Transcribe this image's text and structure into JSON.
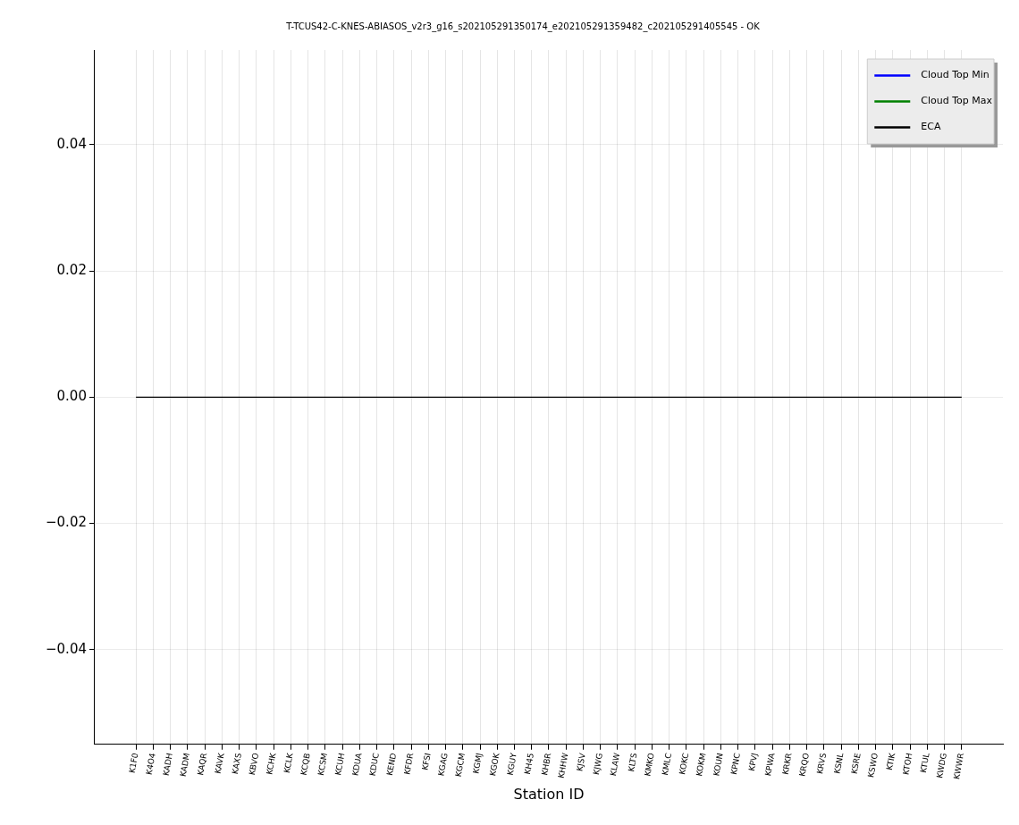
{
  "chart_data": {
    "type": "line",
    "title": "T-TCUS42-C-KNES-ABIASOS_v2r3_g16_s202105291350174_e202105291359482_c202105291405545 - OK",
    "xlabel": "Station ID",
    "categories": [
      "K1F0",
      "K4O4",
      "KADH",
      "KADM",
      "KAQR",
      "KAVK",
      "KAXS",
      "KBVO",
      "KCHK",
      "KCLK",
      "KCQB",
      "KCSM",
      "KCUH",
      "KDUA",
      "KDUC",
      "KEND",
      "KFDR",
      "KFSI",
      "KGAG",
      "KGCM",
      "KGMJ",
      "KGOK",
      "KGUY",
      "KH45",
      "KHBR",
      "KHHW",
      "KJSV",
      "KJWG",
      "KLAW",
      "KLTS",
      "KMKO",
      "KMLC",
      "KOKC",
      "KOKM",
      "KOUN",
      "KPNC",
      "KPVJ",
      "KPWA",
      "KRKR",
      "KRQO",
      "KRVS",
      "KSNL",
      "KSRE",
      "KSWO",
      "KTIK",
      "KTOH",
      "KTUL",
      "KWDG",
      "KWWR"
    ],
    "series": [
      {
        "name": "Cloud Top Min",
        "color": "#0000ff",
        "values": [
          null,
          null,
          null,
          null,
          null,
          null,
          null,
          null,
          null,
          null,
          null,
          null,
          null,
          null,
          null,
          null,
          null,
          null,
          null,
          null,
          null,
          null,
          null,
          null,
          null,
          null,
          null,
          null,
          null,
          null,
          null,
          null,
          null,
          null,
          null,
          null,
          null,
          null,
          null,
          null,
          null,
          null,
          null,
          null,
          null,
          null,
          null,
          null,
          null
        ]
      },
      {
        "name": "Cloud Top Max",
        "color": "#008000",
        "values": [
          null,
          null,
          null,
          null,
          null,
          null,
          null,
          null,
          null,
          null,
          null,
          null,
          null,
          null,
          null,
          null,
          null,
          null,
          null,
          null,
          null,
          null,
          null,
          null,
          null,
          null,
          null,
          null,
          null,
          null,
          null,
          null,
          null,
          null,
          null,
          null,
          null,
          null,
          null,
          null,
          null,
          null,
          null,
          null,
          null,
          null,
          null,
          null,
          null
        ]
      },
      {
        "name": "ECA",
        "color": "#000000",
        "values": [
          0,
          0,
          0,
          0,
          0,
          0,
          0,
          0,
          0,
          0,
          0,
          0,
          0,
          0,
          0,
          0,
          0,
          0,
          0,
          0,
          0,
          0,
          0,
          0,
          0,
          0,
          0,
          0,
          0,
          0,
          0,
          0,
          0,
          0,
          0,
          0,
          0,
          0,
          0,
          0,
          0,
          0,
          0,
          0,
          0,
          0,
          0,
          0,
          0
        ]
      }
    ],
    "ylim": [
      -0.055,
      0.055
    ],
    "yticks": [
      {
        "value": -0.04,
        "label": "−0.04"
      },
      {
        "value": -0.02,
        "label": "−0.02"
      },
      {
        "value": 0,
        "label": "0.00"
      },
      0.02,
      0.04
    ],
    "grid": true,
    "legend": "top right",
    "marker": "none",
    "line_style": "solid"
  }
}
